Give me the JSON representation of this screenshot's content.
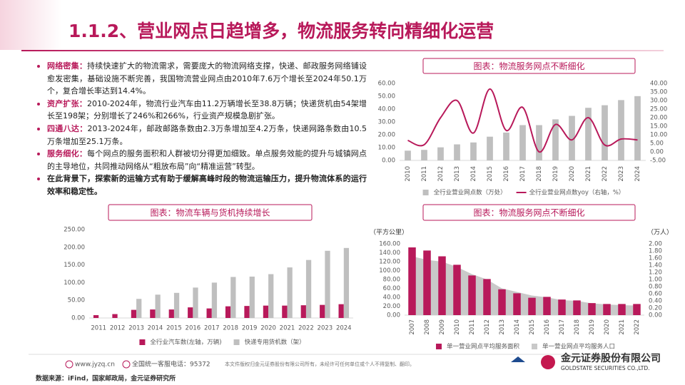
{
  "header": {
    "title": "1.1.2、营业网点日趋增多，物流服务转向精细化运营"
  },
  "bullets": [
    {
      "label": "网络密集：",
      "text": "持续快速扩大的物流需求，需要庞大的物流网络支撑，快递、邮政服务网络铺设愈发密集，基础设施不断完善，我国物流营业网点由2010年7.6万个增长至2024年50.1万个，复合增长率达到14.4%。"
    },
    {
      "label": "资产扩张：",
      "text": "2010-2024年，物流行业汽车由11.2万辆增长至38.8万辆；快递货机由54架增长至198架；分别增长了246%和266%，行业资产规模急剧扩张。"
    },
    {
      "label": "四通八达：",
      "text": "2013-2024年，邮政邮路条数由2.3万条增加至4.2万条，快递网路条数由10.5万条增加至25.1万条。"
    },
    {
      "label": "服务细化：",
      "text": "每个网点的服务面积和人群被切分得更加细致。单点服务效能的提升与城镇网点的主导地位，共同推动网络从“粗放布局”向“精准运营”转型。"
    },
    {
      "text": "在此背景下，探索新的运输方式有助于缓解高峰时段的物流运输压力，提升物流体系的运行效率和稳定性。"
    }
  ],
  "chart_data": [
    {
      "type": "combo",
      "title": "图表：物流服务网点不断细化",
      "categories": [
        "2010",
        "2011",
        "2012",
        "2013",
        "2014",
        "2015",
        "2016",
        "2017",
        "2018",
        "2019",
        "2020",
        "2021",
        "2022",
        "2023",
        "2024"
      ],
      "series": [
        {
          "name": "全行业营业网点数（万处）",
          "type": "bar",
          "color": "#bfbfbf",
          "values": [
            7.6,
            8.2,
            10.2,
            12.5,
            14,
            18.5,
            21.7,
            27.5,
            27.5,
            32,
            34.7,
            41,
            43,
            47,
            50.1
          ]
        },
        {
          "name": "全行业营业网点数yoy（右轴，%）",
          "type": "line",
          "axis": "y2",
          "color": "#b8195a",
          "values": [
            6.7,
            4.2,
            20,
            30,
            11,
            36.7,
            12.5,
            26,
            0,
            16,
            7,
            20,
            4,
            7.5,
            7
          ]
        }
      ],
      "ylim": [
        0,
        60
      ],
      "yticks": [
        {
          "value": 0,
          "label": "0.00"
        },
        {
          "value": 10,
          "label": "10.00"
        },
        {
          "value": 20,
          "label": "20.00"
        },
        {
          "value": 30,
          "label": "30.00"
        },
        {
          "value": 40,
          "label": "40.00"
        },
        {
          "value": 50,
          "label": "50.00"
        },
        {
          "value": 60,
          "label": "60.00"
        }
      ],
      "y2lim": [
        -5,
        40
      ],
      "y2ticks": [
        {
          "value": -5,
          "label": "-5.00"
        },
        {
          "value": 0,
          "label": "0.00"
        },
        {
          "value": 5,
          "label": "5.00"
        },
        {
          "value": 10,
          "label": "10.00"
        },
        {
          "value": 15,
          "label": "15.00"
        },
        {
          "value": 20,
          "label": "20.00"
        },
        {
          "value": 25,
          "label": "25.00"
        },
        {
          "value": 30,
          "label": "30.00"
        },
        {
          "value": 35,
          "label": "35.00"
        },
        {
          "value": 40,
          "label": "40.00"
        }
      ]
    },
    {
      "type": "bar",
      "title": "图表：物流车辆与货机持续增长",
      "categories": [
        "2011",
        "2012",
        "2013",
        "2014",
        "2015",
        "2016",
        "2017",
        "2018",
        "2019",
        "2020",
        "2021",
        "2022",
        "2023",
        "2024"
      ],
      "series": [
        {
          "name": "全行业汽车数(左轴，万辆)",
          "type": "bar",
          "color": "#b8195a",
          "values": [
            8,
            11,
            23,
            24,
            24,
            30,
            27,
            33,
            34,
            35,
            35,
            36,
            37,
            39
          ]
        },
        {
          "name": "快递专用货机数（架）",
          "type": "bar",
          "color": "#bfbfbf",
          "values": [
            null,
            null,
            54,
            66,
            71,
            86,
            100,
            116,
            117,
            124,
            143,
            164,
            190,
            198
          ]
        }
      ],
      "ylim": [
        0,
        250
      ],
      "yticks": [
        {
          "value": 0,
          "label": "0.00"
        },
        {
          "value": 50,
          "label": "50.00"
        },
        {
          "value": 100,
          "label": "100.00"
        },
        {
          "value": 150,
          "label": "150.00"
        },
        {
          "value": 200,
          "label": "200.00"
        },
        {
          "value": 250,
          "label": "250.00"
        }
      ]
    },
    {
      "type": "combo",
      "title": "图表：物流服务网点不断细化",
      "ylabel": "（平方公里）",
      "y2label": "（万人）",
      "categories": [
        "2007",
        "2008",
        "2009",
        "2010",
        "2011",
        "2012",
        "2013",
        "2014",
        "2015",
        "2016",
        "2017",
        "2018",
        "2019",
        "2020",
        "2021",
        "2022"
      ],
      "series": [
        {
          "name": "单一营业网点平均服务面积",
          "type": "bar",
          "color": "#b8195a",
          "values": [
            152,
            145,
            132,
            113,
            89,
            81,
            58,
            49,
            39,
            41,
            35,
            33,
            27,
            25,
            25,
            25
          ]
        },
        {
          "name": "单一营业网点平均服务人口",
          "type": "area",
          "axis": "y2",
          "color": "#c9c9c9",
          "values": [
            1.65,
            1.55,
            1.5,
            1.35,
            1.15,
            1.0,
            0.75,
            0.65,
            0.55,
            0.5,
            0.42,
            0.4,
            0.33,
            0.3,
            0.28,
            0.27
          ]
        }
      ],
      "ylim": [
        0,
        160
      ],
      "yticks": [
        {
          "value": 0,
          "label": "0.00"
        },
        {
          "value": 20,
          "label": "20.00"
        },
        {
          "value": 40,
          "label": "40.00"
        },
        {
          "value": 60,
          "label": "60.00"
        },
        {
          "value": 80,
          "label": "80.00"
        },
        {
          "value": 100,
          "label": "100.00"
        },
        {
          "value": 120,
          "label": "120.00"
        },
        {
          "value": 140,
          "label": "140.00"
        },
        {
          "value": 160,
          "label": "160.00"
        }
      ],
      "y2lim": [
        0,
        2
      ],
      "y2ticks": [
        {
          "value": 0,
          "label": "0.00"
        },
        {
          "value": 0.2,
          "label": "0.20"
        },
        {
          "value": 0.4,
          "label": "0.40"
        },
        {
          "value": 0.6,
          "label": "0.60"
        },
        {
          "value": 0.8,
          "label": "0.80"
        },
        {
          "value": 1.0,
          "label": "1.00"
        },
        {
          "value": 1.2,
          "label": "1.20"
        },
        {
          "value": 1.4,
          "label": "1.40"
        },
        {
          "value": 1.6,
          "label": "1.60"
        },
        {
          "value": 1.8,
          "label": "1.80"
        },
        {
          "value": 2.0,
          "label": "2.00"
        }
      ]
    }
  ],
  "footer": {
    "website": "www.jyzq.cn",
    "hotline": "全国统一客服电话：95372",
    "copyright": "本文件版权归金元证券股份有限公司所有，未经许可任何单位或个人不得复制、翻印。",
    "company": "金元证券股份有限公司",
    "company_en": "GOLDSTATE SECURITIES CO.,LTD.",
    "source": "数据来源：iFind，国家邮政局，金元证券研究所"
  }
}
